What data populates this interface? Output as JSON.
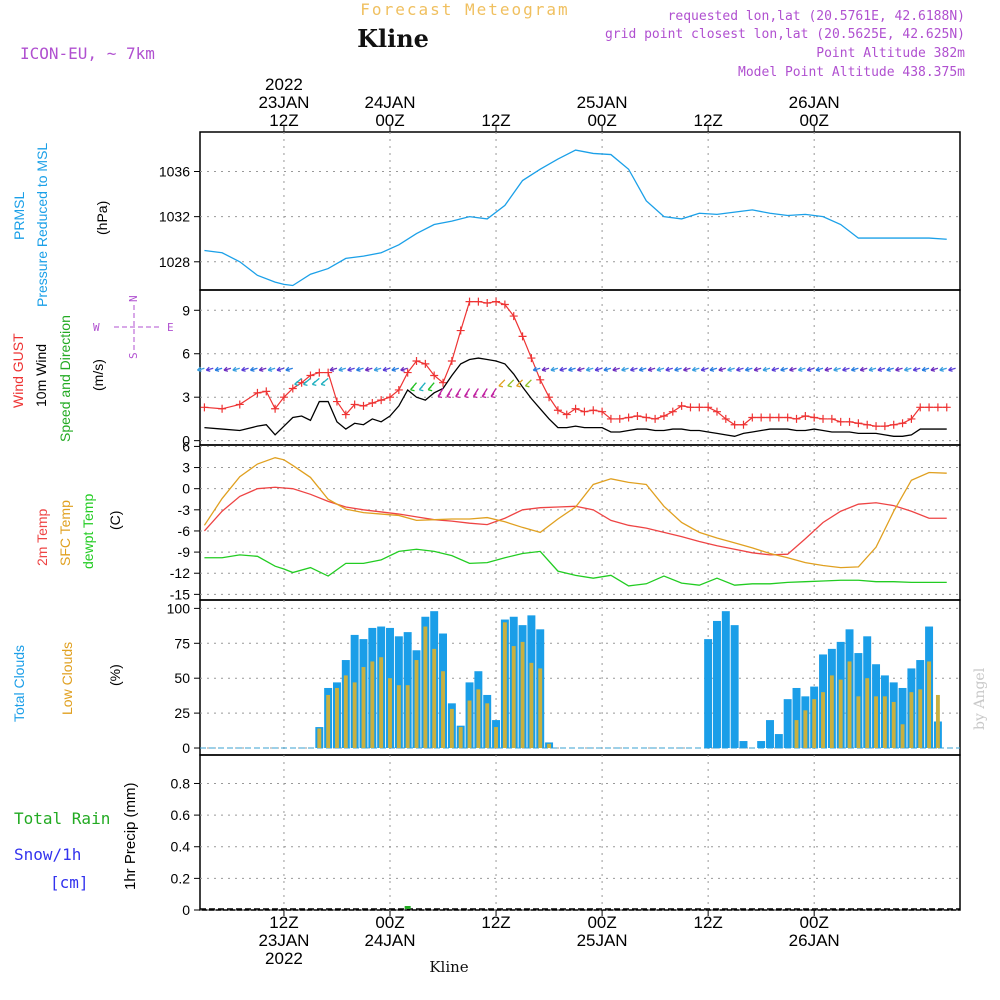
{
  "header": {
    "meteogram_label": "Forecast Meteogram",
    "location": "Kline",
    "model": "ICON-EU, ~ 7km",
    "requested": "requested lon,lat (20.5761E, 42.6188N)",
    "grid_point": "grid point closest lon,lat (20.5625E, 42.625N)",
    "point_altitude": "Point Altitude 382m",
    "model_altitude": "Model Point Altitude 438.375m"
  },
  "footer": {
    "location": "Kline",
    "watermark": "by Angel"
  },
  "time_axis": {
    "top_ticks": [
      {
        "h": 12,
        "lines": [
          "2022",
          "23JAN",
          "12Z"
        ]
      },
      {
        "h": 24,
        "lines": [
          "24JAN",
          "00Z"
        ]
      },
      {
        "h": 36,
        "lines": [
          "12Z"
        ]
      },
      {
        "h": 48,
        "lines": [
          "25JAN",
          "00Z"
        ]
      },
      {
        "h": 60,
        "lines": [
          "12Z"
        ]
      },
      {
        "h": 72,
        "lines": [
          "26JAN",
          "00Z"
        ]
      }
    ],
    "bottom_ticks": [
      {
        "h": 12,
        "lines": [
          "12Z",
          "23JAN",
          "2022"
        ]
      },
      {
        "h": 24,
        "lines": [
          "00Z",
          "24JAN"
        ]
      },
      {
        "h": 36,
        "lines": [
          "12Z"
        ]
      },
      {
        "h": 48,
        "lines": [
          "00Z",
          "25JAN"
        ]
      },
      {
        "h": 60,
        "lines": [
          "12Z"
        ]
      },
      {
        "h": 72,
        "lines": [
          "00Z",
          "26JAN"
        ]
      }
    ]
  },
  "panels": {
    "pressure": {
      "label1": "PRMSL",
      "label2": "Pressure Reduced to MSL",
      "unit": "(hPa)"
    },
    "wind": {
      "label_gust": "Wind GUST",
      "label_wind": "10m Wind",
      "label_dir": "Speed and Direction",
      "unit": "(m/s)",
      "compass_n": "N",
      "compass_s": "S",
      "compass_w": "W",
      "compass_e": "E"
    },
    "temp": {
      "label_2m": "2m Temp",
      "label_sfc": "SFC Temp",
      "label_dew": "dewpt Temp",
      "unit": "(C)"
    },
    "clouds": {
      "label_total": "Total Clouds",
      "label_low": "Low Clouds",
      "unit": "(%)"
    },
    "precip": {
      "label_rain": "Total Rain",
      "label_snow": "Snow/1h",
      "label_cm": "[cm]",
      "unit": "1hr Precip (mm)"
    }
  },
  "colors": {
    "pressure": "#1ba0e8",
    "gust": "#ee3333",
    "wind": "#000000",
    "t2m": "#ee4444",
    "sfc": "#e0a020",
    "dew": "#22cc22",
    "total_cloud": "#1a9ee8",
    "low_cloud": "#c8b040",
    "rain": "#22aa22",
    "purple": "#b050d0",
    "gold": "#f0c060"
  },
  "chart_data": [
    {
      "type": "line",
      "title": "PRMSL",
      "ylabel": "(hPa)",
      "ylim": [
        1025.5,
        1039.5
      ],
      "yticks": [
        1028,
        1032,
        1036
      ],
      "x_hours": [
        3,
        5,
        7,
        9,
        11,
        12,
        13,
        15,
        17,
        19,
        21,
        23,
        25,
        27,
        29,
        31,
        33,
        35,
        37,
        39,
        41,
        43,
        45,
        47,
        49,
        51,
        53,
        55,
        57,
        59,
        61,
        63,
        65,
        67,
        69,
        71,
        73,
        75,
        77,
        79,
        81,
        83,
        85,
        87
      ],
      "series": [
        {
          "name": "PRMSL",
          "values": [
            1029.0,
            1028.8,
            1028.0,
            1026.8,
            1026.2,
            1026.0,
            1025.9,
            1026.9,
            1027.4,
            1028.3,
            1028.5,
            1028.8,
            1029.5,
            1030.5,
            1031.3,
            1031.6,
            1032.0,
            1031.8,
            1033.0,
            1035.2,
            1036.2,
            1037.1,
            1037.9,
            1037.6,
            1037.5,
            1036.2,
            1033.4,
            1032.0,
            1031.8,
            1032.3,
            1032.2,
            1032.4,
            1032.6,
            1032.3,
            1032.1,
            1032.2,
            1032.0,
            1031.3,
            1030.1,
            1030.1,
            1030.1,
            1030.1,
            1030.1,
            1030.0
          ]
        }
      ]
    },
    {
      "type": "line",
      "title": "Wind",
      "ylabel": "(m/s)",
      "ylim": [
        -0.3,
        10.4
      ],
      "yticks": [
        0,
        3,
        6,
        9
      ],
      "x_hours": [
        3,
        5,
        7,
        9,
        10,
        11,
        12,
        13,
        14,
        15,
        16,
        17,
        18,
        19,
        20,
        21,
        22,
        23,
        24,
        25,
        26,
        27,
        28,
        29,
        30,
        31,
        32,
        33,
        34,
        35,
        36,
        37,
        38,
        39,
        40,
        41,
        42,
        43,
        44,
        45,
        46,
        47,
        48,
        49,
        50,
        51,
        52,
        53,
        54,
        55,
        56,
        57,
        58,
        59,
        60,
        61,
        62,
        63,
        64,
        65,
        66,
        67,
        68,
        69,
        70,
        71,
        72,
        73,
        74,
        75,
        76,
        77,
        78,
        79,
        80,
        81,
        82,
        83,
        84,
        85,
        86,
        87
      ],
      "series": [
        {
          "name": "Wind GUST",
          "values": [
            2.3,
            2.2,
            2.5,
            3.3,
            3.4,
            2.2,
            3.0,
            3.6,
            4.0,
            4.5,
            4.7,
            4.7,
            2.7,
            1.8,
            2.5,
            2.4,
            2.6,
            2.8,
            3.0,
            3.5,
            4.7,
            5.5,
            5.3,
            4.5,
            4.0,
            5.5,
            7.6,
            9.6,
            9.6,
            9.5,
            9.6,
            9.4,
            8.6,
            7.2,
            5.7,
            4.2,
            3.0,
            2.1,
            1.8,
            2.2,
            2.0,
            2.1,
            2.0,
            1.5,
            1.5,
            1.6,
            1.7,
            1.6,
            1.5,
            1.7,
            2.0,
            2.4,
            2.3,
            2.3,
            2.3,
            2.0,
            1.5,
            1.1,
            1.1,
            1.6,
            1.6,
            1.6,
            1.6,
            1.6,
            1.5,
            1.7,
            1.6,
            1.5,
            1.5,
            1.3,
            1.3,
            1.2,
            1.1,
            1.0,
            1.0,
            1.1,
            1.2,
            1.5,
            2.3,
            2.3,
            2.3,
            2.3
          ]
        },
        {
          "name": "10m Wind",
          "values": [
            0.9,
            0.8,
            0.7,
            1.0,
            1.1,
            0.4,
            1.0,
            1.6,
            1.7,
            1.4,
            2.7,
            2.7,
            1.3,
            0.8,
            1.2,
            1.1,
            1.5,
            1.3,
            1.7,
            2.4,
            3.5,
            3.0,
            2.8,
            3.3,
            3.6,
            4.5,
            5.3,
            5.6,
            5.7,
            5.6,
            5.5,
            5.3,
            4.6,
            3.7,
            2.9,
            2.2,
            1.5,
            0.9,
            0.9,
            1.0,
            0.9,
            0.9,
            0.9,
            0.6,
            0.6,
            0.7,
            0.8,
            0.8,
            0.7,
            0.7,
            0.8,
            0.8,
            0.7,
            0.7,
            0.6,
            0.5,
            0.4,
            0.3,
            0.5,
            0.6,
            0.7,
            0.8,
            0.8,
            0.8,
            0.7,
            0.7,
            0.8,
            0.7,
            0.6,
            0.6,
            0.6,
            0.5,
            0.5,
            0.5,
            0.4,
            0.3,
            0.3,
            0.4,
            0.8,
            0.8,
            0.8,
            0.8
          ]
        }
      ]
    },
    {
      "type": "line",
      "title": "Temperature",
      "ylabel": "(C)",
      "ylim": [
        -15.8,
        6.2
      ],
      "yticks": [
        6,
        3,
        0,
        -3,
        -6,
        -9,
        -12,
        -15
      ],
      "x_hours": [
        3,
        5,
        7,
        9,
        11,
        12,
        13,
        15,
        17,
        19,
        21,
        23,
        25,
        27,
        29,
        31,
        33,
        35,
        37,
        39,
        41,
        43,
        45,
        47,
        49,
        51,
        53,
        55,
        57,
        59,
        61,
        63,
        65,
        67,
        69,
        71,
        73,
        75,
        77,
        79,
        81,
        83,
        85,
        87
      ],
      "series": [
        {
          "name": "2m Temp",
          "values": [
            -6.0,
            -3.2,
            -1.1,
            0.0,
            0.2,
            0.1,
            0.0,
            -0.8,
            -1.8,
            -2.6,
            -3.0,
            -3.3,
            -3.6,
            -4.0,
            -4.4,
            -4.6,
            -4.9,
            -5.1,
            -4.2,
            -3.0,
            -2.7,
            -2.6,
            -2.5,
            -3.0,
            -4.5,
            -5.2,
            -5.6,
            -6.2,
            -6.8,
            -7.5,
            -8.1,
            -8.6,
            -9.1,
            -9.4,
            -9.3,
            -7.1,
            -4.8,
            -3.2,
            -2.2,
            -2.0,
            -2.4,
            -3.2,
            -4.2,
            -4.2
          ]
        },
        {
          "name": "SFC Temp",
          "values": [
            -5.2,
            -1.4,
            1.7,
            3.5,
            4.4,
            4.1,
            3.3,
            1.6,
            -1.5,
            -2.9,
            -3.4,
            -3.6,
            -3.8,
            -4.5,
            -4.4,
            -4.3,
            -4.3,
            -4.1,
            -4.7,
            -5.5,
            -6.2,
            -4.3,
            -2.6,
            0.6,
            1.4,
            0.9,
            0.6,
            -2.5,
            -4.8,
            -6.2,
            -7.0,
            -7.7,
            -8.4,
            -9.2,
            -9.8,
            -10.5,
            -10.9,
            -11.2,
            -11.1,
            -8.3,
            -3.2,
            1.2,
            2.3,
            2.2
          ]
        },
        {
          "name": "dewpt Temp",
          "values": [
            -9.8,
            -9.8,
            -9.4,
            -9.6,
            -11.0,
            -11.4,
            -11.9,
            -11.2,
            -12.4,
            -10.6,
            -10.6,
            -10.1,
            -8.9,
            -8.6,
            -8.9,
            -9.5,
            -10.6,
            -10.5,
            -9.8,
            -9.2,
            -8.9,
            -11.7,
            -12.3,
            -12.7,
            -12.3,
            -13.8,
            -13.5,
            -12.4,
            -13.4,
            -13.7,
            -12.7,
            -13.7,
            -13.5,
            -13.5,
            -13.3,
            -13.2,
            -13.1,
            -13.0,
            -13.0,
            -13.2,
            -13.2,
            -13.3,
            -13.3,
            -13.3
          ]
        }
      ]
    },
    {
      "type": "bar",
      "title": "Clouds",
      "ylabel": "(%)",
      "ylim": [
        -5,
        106
      ],
      "yticks": [
        0,
        25,
        50,
        75,
        100
      ],
      "x_hours": [
        3,
        4,
        5,
        6,
        7,
        8,
        9,
        10,
        11,
        12,
        13,
        14,
        15,
        16,
        17,
        18,
        19,
        20,
        21,
        22,
        23,
        24,
        25,
        26,
        27,
        28,
        29,
        30,
        31,
        32,
        33,
        34,
        35,
        36,
        37,
        38,
        39,
        40,
        41,
        42,
        43,
        44,
        45,
        46,
        47,
        48,
        49,
        50,
        51,
        52,
        53,
        54,
        55,
        56,
        57,
        58,
        59,
        60,
        61,
        62,
        63,
        64,
        65,
        66,
        67,
        68,
        69,
        70,
        71,
        72,
        73,
        74,
        75,
        76,
        77,
        78,
        79,
        80,
        81,
        82,
        83,
        84,
        85,
        86,
        87
      ],
      "series": [
        {
          "name": "Total Clouds",
          "values": [
            0,
            0,
            0,
            0,
            0,
            0,
            0,
            0,
            0,
            0,
            0,
            0,
            0,
            15,
            43,
            47,
            63,
            81,
            78,
            86,
            87,
            86,
            80,
            83,
            70,
            94,
            98,
            82,
            32,
            16,
            47,
            55,
            38,
            20,
            92,
            94,
            88,
            95,
            85,
            4,
            0,
            0,
            0,
            0,
            0,
            0,
            0,
            0,
            0,
            0,
            0,
            0,
            0,
            0,
            0,
            0,
            0,
            78,
            91,
            98,
            88,
            5,
            0,
            5,
            20,
            10,
            35,
            43,
            37,
            44,
            67,
            71,
            76,
            85,
            68,
            80,
            60,
            52,
            47,
            43,
            57,
            63,
            87,
            19,
            0
          ]
        },
        {
          "name": "Low Clouds",
          "values": [
            0,
            0,
            0,
            0,
            0,
            0,
            0,
            0,
            0,
            0,
            0,
            0,
            0,
            14,
            38,
            43,
            52,
            47,
            58,
            62,
            65,
            50,
            45,
            45,
            63,
            87,
            71,
            55,
            28,
            15,
            34,
            42,
            32,
            15,
            90,
            73,
            76,
            61,
            57,
            3,
            0,
            0,
            0,
            0,
            0,
            0,
            0,
            0,
            0,
            0,
            0,
            0,
            0,
            0,
            0,
            0,
            0,
            0,
            0,
            0,
            0,
            0,
            0,
            0,
            0,
            0,
            0,
            20,
            27,
            35,
            40,
            52,
            49,
            62,
            37,
            50,
            37,
            37,
            33,
            17,
            40,
            42,
            62,
            38,
            0
          ]
        }
      ]
    },
    {
      "type": "bar",
      "title": "Precipitation",
      "ylabel": "1hr Precip (mm)",
      "ylim": [
        0,
        0.98
      ],
      "yticks": [
        0,
        0.2,
        0.4,
        0.6,
        0.8
      ],
      "x_hours": [
        26
      ],
      "series": [
        {
          "name": "Total Rain",
          "values": [
            0.01
          ]
        }
      ]
    }
  ]
}
